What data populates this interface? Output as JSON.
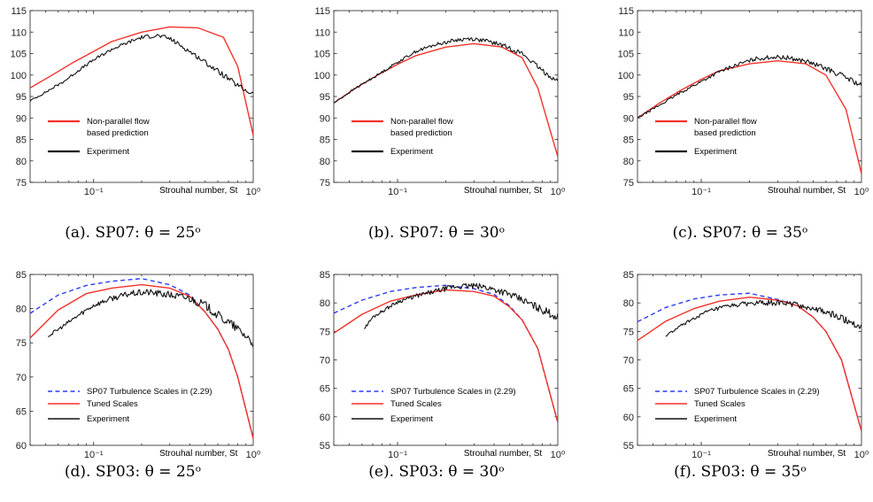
{
  "colors": {
    "red": "#f2322a",
    "black": "#111111",
    "blue": "#2b3df0",
    "axis": "#222222"
  },
  "chart_data": [
    {
      "id": "a",
      "type": "line",
      "xscale": "log",
      "xlim": [
        0.04,
        1.0
      ],
      "ylim": [
        75,
        115
      ],
      "yticks": [
        "75",
        "80",
        "85",
        "90",
        "95",
        "100",
        "105",
        "110",
        "115"
      ],
      "xticks": [
        {
          "v": 0.1,
          "label": "10⁻¹"
        },
        {
          "v": 1,
          "label": "10⁰"
        }
      ],
      "xlabel": "Strouhal number,  St",
      "legend_rows": [
        [
          "red",
          "Non-parallel flow"
        ],
        [
          "",
          "based prediction"
        ],
        [
          "black",
          "Experiment"
        ]
      ],
      "caption": "(a). SP07: θ = 25ᵒ",
      "series": [
        {
          "color": "red",
          "style": "solid",
          "name": "Non-parallel flow based prediction",
          "x": [
            0.04,
            0.055,
            0.075,
            0.1,
            0.13,
            0.2,
            0.3,
            0.45,
            0.65,
            0.8,
            1.0
          ],
          "y": [
            97,
            100,
            103,
            105.5,
            107.8,
            110.0,
            111.2,
            111.0,
            108.8,
            102,
            86
          ]
        },
        {
          "color": "black",
          "style": "noisy",
          "noise": 0.45,
          "name": "Experiment",
          "x": [
            0.04,
            0.05,
            0.065,
            0.08,
            0.1,
            0.13,
            0.17,
            0.2,
            0.25,
            0.3,
            0.4,
            0.5,
            0.65,
            0.8,
            1.0
          ],
          "y": [
            94,
            96,
            98.5,
            101,
            103.5,
            106,
            107.8,
            108.8,
            109.2,
            108.5,
            105.5,
            103,
            100,
            97.5,
            95.5
          ]
        }
      ]
    },
    {
      "id": "b",
      "type": "line",
      "xscale": "log",
      "xlim": [
        0.04,
        1.0
      ],
      "ylim": [
        75,
        115
      ],
      "yticks": [
        "75",
        "80",
        "85",
        "90",
        "95",
        "100",
        "105",
        "110",
        "115"
      ],
      "xticks": [
        {
          "v": 0.1,
          "label": "10⁻¹"
        },
        {
          "v": 1,
          "label": "10⁰"
        }
      ],
      "xlabel": "Strouhal number,  St",
      "legend_rows": [
        [
          "red",
          "Non-parallel flow"
        ],
        [
          "",
          "based prediction"
        ],
        [
          "black",
          "Experiment"
        ]
      ],
      "caption": "(b). SP07: θ = 30ᵒ",
      "series": [
        {
          "color": "red",
          "style": "solid",
          "name": "Non-parallel flow based prediction",
          "x": [
            0.04,
            0.055,
            0.075,
            0.1,
            0.13,
            0.2,
            0.3,
            0.45,
            0.6,
            0.75,
            1.0
          ],
          "y": [
            93.5,
            97,
            100,
            102.5,
            104.5,
            106.5,
            107.3,
            106.5,
            104,
            97,
            81
          ]
        },
        {
          "color": "black",
          "style": "noisy",
          "noise": 0.4,
          "name": "Experiment",
          "x": [
            0.04,
            0.055,
            0.075,
            0.1,
            0.13,
            0.17,
            0.22,
            0.28,
            0.35,
            0.45,
            0.6,
            0.8,
            1.0
          ],
          "y": [
            93.5,
            97,
            100,
            103,
            105.5,
            107,
            108,
            108.5,
            108,
            107,
            105,
            101,
            98.5
          ]
        }
      ]
    },
    {
      "id": "c",
      "type": "line",
      "xscale": "log",
      "xlim": [
        0.04,
        1.0
      ],
      "ylim": [
        75,
        115
      ],
      "yticks": [
        "75",
        "80",
        "85",
        "90",
        "95",
        "100",
        "105",
        "110",
        "115"
      ],
      "xticks": [
        {
          "v": 0.1,
          "label": "10⁻¹"
        },
        {
          "v": 1,
          "label": "10⁰"
        }
      ],
      "xlabel": "Strouhal number,  St",
      "legend_rows": [
        [
          "red",
          "Non-parallel flow"
        ],
        [
          "",
          "based prediction"
        ],
        [
          "black",
          "Experiment"
        ]
      ],
      "caption": "(c). SP07: θ = 35ᵒ",
      "series": [
        {
          "color": "red",
          "style": "solid",
          "name": "Non-parallel flow based prediction",
          "x": [
            0.04,
            0.055,
            0.075,
            0.1,
            0.13,
            0.2,
            0.3,
            0.45,
            0.6,
            0.8,
            1.0
          ],
          "y": [
            90,
            93.5,
            96.5,
            99,
            101,
            102.6,
            103.3,
            102.6,
            100,
            92,
            77
          ]
        },
        {
          "color": "black",
          "style": "noisy",
          "noise": 0.45,
          "name": "Experiment",
          "x": [
            0.04,
            0.055,
            0.075,
            0.1,
            0.13,
            0.17,
            0.22,
            0.28,
            0.35,
            0.45,
            0.6,
            0.8,
            1.0
          ],
          "y": [
            90,
            93,
            96,
            98.5,
            100.8,
            102.5,
            103.8,
            104.2,
            104,
            103.2,
            101.5,
            99.5,
            97.5
          ]
        }
      ]
    },
    {
      "id": "d",
      "type": "line",
      "xscale": "log",
      "xlim": [
        0.04,
        1.0
      ],
      "ylim": [
        60,
        85
      ],
      "yticks": [
        "60",
        "65",
        "70",
        "75",
        "80",
        "85"
      ],
      "xticks": [
        {
          "v": 0.1,
          "label": "10⁻¹"
        },
        {
          "v": 1,
          "label": "10⁰"
        }
      ],
      "xlabel": "Strouhal number,  St",
      "legend_rows": [
        [
          "blue",
          "SP07 Turbulence Scales in (2.29)"
        ],
        [
          "red",
          "Tuned Scales"
        ],
        [
          "black",
          "Experiment"
        ]
      ],
      "caption": "(d). SP03: θ = 25ᵒ",
      "series": [
        {
          "color": "blue",
          "style": "dashed",
          "name": "SP07 Turbulence Scales in (2.29)",
          "x": [
            0.04,
            0.06,
            0.09,
            0.13,
            0.2,
            0.3,
            0.4,
            0.5,
            0.6,
            0.7,
            0.8,
            1.0
          ],
          "y": [
            79.3,
            82,
            83.4,
            84,
            84.4,
            83.5,
            82,
            79.5,
            77,
            74,
            70,
            61
          ]
        },
        {
          "color": "red",
          "style": "solid",
          "name": "Tuned Scales",
          "x": [
            0.04,
            0.06,
            0.09,
            0.13,
            0.2,
            0.3,
            0.4,
            0.5,
            0.6,
            0.7,
            0.8,
            1.0
          ],
          "y": [
            75.7,
            79.8,
            82.2,
            83,
            83.5,
            83,
            81.8,
            79.5,
            77,
            74,
            70,
            61
          ]
        },
        {
          "color": "black",
          "style": "noisy",
          "noise": 0.5,
          "name": "Experiment",
          "x": [
            0.052,
            0.065,
            0.08,
            0.1,
            0.13,
            0.17,
            0.22,
            0.3,
            0.4,
            0.5,
            0.6,
            0.75,
            0.9,
            1.0
          ],
          "y": [
            76,
            77.5,
            79,
            80.5,
            81.5,
            82.2,
            82.4,
            82,
            81.5,
            80.5,
            79,
            77.5,
            76,
            75
          ]
        }
      ]
    },
    {
      "id": "e",
      "type": "line",
      "xscale": "log",
      "xlim": [
        0.04,
        1.0
      ],
      "ylim": [
        55,
        85
      ],
      "yticks": [
        "55",
        "60",
        "65",
        "70",
        "75",
        "80",
        "85"
      ],
      "xticks": [
        {
          "v": 0.1,
          "label": "10⁻¹"
        },
        {
          "v": 1,
          "label": "10⁰"
        }
      ],
      "xlabel": "Strouhal number,  St",
      "legend_rows": [
        [
          "blue",
          "SP07 Turbulence Scales in (2.29)"
        ],
        [
          "red",
          "Tuned Scales"
        ],
        [
          "black",
          "Experiment"
        ]
      ],
      "caption": "(e). SP03: θ = 30ᵒ",
      "series": [
        {
          "color": "blue",
          "style": "dashed",
          "name": "SP07 Turbulence Scales in (2.29)",
          "x": [
            0.04,
            0.06,
            0.09,
            0.13,
            0.2,
            0.3,
            0.4,
            0.5,
            0.6,
            0.75,
            1.0
          ],
          "y": [
            78.2,
            80.5,
            82,
            82.7,
            83.1,
            82.5,
            81.5,
            79.5,
            77,
            72,
            59
          ]
        },
        {
          "color": "red",
          "style": "solid",
          "name": "Tuned Scales",
          "x": [
            0.04,
            0.06,
            0.09,
            0.13,
            0.2,
            0.3,
            0.4,
            0.5,
            0.6,
            0.75,
            1.0
          ],
          "y": [
            74.7,
            78,
            80.3,
            81.4,
            82.3,
            82,
            81.2,
            79.3,
            77,
            72,
            59
          ]
        },
        {
          "color": "black",
          "style": "noisy",
          "noise": 0.5,
          "name": "Experiment",
          "x": [
            0.062,
            0.07,
            0.085,
            0.1,
            0.13,
            0.17,
            0.22,
            0.28,
            0.35,
            0.45,
            0.6,
            0.8,
            1.0
          ],
          "y": [
            75.5,
            77.5,
            79,
            80.2,
            81.2,
            82,
            82.8,
            83,
            82.8,
            82,
            80.5,
            78.8,
            77.5
          ]
        }
      ]
    },
    {
      "id": "f",
      "type": "line",
      "xscale": "log",
      "xlim": [
        0.04,
        1.0
      ],
      "ylim": [
        55,
        85
      ],
      "yticks": [
        "55",
        "60",
        "65",
        "70",
        "75",
        "80",
        "85"
      ],
      "xticks": [
        {
          "v": 0.1,
          "label": "10⁻¹"
        },
        {
          "v": 1,
          "label": "10⁰"
        }
      ],
      "xlabel": "Strouhal number,  St",
      "legend_rows": [
        [
          "blue",
          "SP07 Turbulence Scales in (2.29)"
        ],
        [
          "red",
          "Tuned Scales"
        ],
        [
          "black",
          "Experiment"
        ]
      ],
      "caption": "(f). SP03: θ = 35ᵒ",
      "series": [
        {
          "color": "blue",
          "style": "dashed",
          "name": "SP07 Turbulence Scales in (2.29)",
          "x": [
            0.04,
            0.06,
            0.09,
            0.13,
            0.2,
            0.3,
            0.4,
            0.5,
            0.6,
            0.75,
            1.0
          ],
          "y": [
            76.7,
            79.2,
            80.7,
            81.4,
            81.7,
            80.6,
            79.5,
            77.5,
            75,
            70,
            57.5
          ]
        },
        {
          "color": "red",
          "style": "solid",
          "name": "Tuned Scales",
          "x": [
            0.04,
            0.06,
            0.09,
            0.13,
            0.2,
            0.3,
            0.4,
            0.5,
            0.6,
            0.75,
            1.0
          ],
          "y": [
            73.4,
            76.8,
            79,
            80.3,
            81,
            80.5,
            79.5,
            77.5,
            75,
            70,
            57.5
          ]
        },
        {
          "color": "black",
          "style": "noisy",
          "noise": 0.45,
          "name": "Experiment",
          "x": [
            0.06,
            0.075,
            0.09,
            0.11,
            0.14,
            0.18,
            0.23,
            0.3,
            0.38,
            0.5,
            0.65,
            0.8,
            1.0
          ],
          "y": [
            74.2,
            76,
            77.3,
            78.5,
            79.3,
            79.8,
            80,
            80,
            79.8,
            79,
            78,
            77,
            75.8
          ]
        }
      ]
    }
  ]
}
